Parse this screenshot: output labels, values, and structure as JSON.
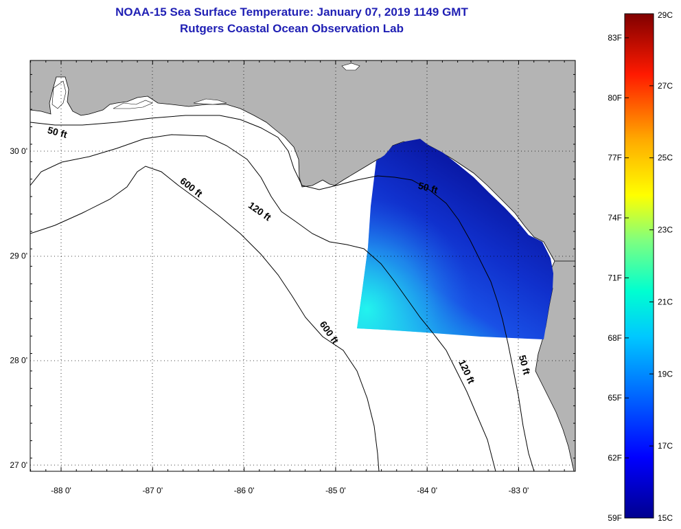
{
  "title": {
    "line1": "NOAA-15 Sea Surface Temperature:  January 07, 2019 1149 GMT",
    "line2": "Rutgers Coastal Ocean Observation Lab"
  },
  "colors": {
    "land": "#b4b4b4",
    "ocean": "#ffffff",
    "title": "#1f1fb4"
  },
  "map": {
    "lon_range": [
      -88.33,
      -82.4
    ],
    "lat_range": [
      27.0,
      30.9
    ],
    "lon_ticks": [
      {
        "value": -88,
        "label": "-88 0'"
      },
      {
        "value": -87,
        "label": "-87 0'"
      },
      {
        "value": -86,
        "label": "-86 0'"
      },
      {
        "value": -85,
        "label": "-85 0'"
      },
      {
        "value": -84,
        "label": "-84 0'"
      },
      {
        "value": -83,
        "label": "-83 0'"
      }
    ],
    "lat_ticks": [
      {
        "value": 27,
        "label": "27 0'"
      },
      {
        "value": 28,
        "label": "28 0'"
      },
      {
        "value": 29,
        "label": "29 0'"
      },
      {
        "value": 30,
        "label": "30 0'"
      }
    ],
    "contour_labels": [
      {
        "text": "50 ft",
        "lon": -88.05,
        "lat": 30.15,
        "angle": 15
      },
      {
        "text": "600 ft",
        "lon": -86.6,
        "lat": 29.63,
        "angle": 38
      },
      {
        "text": "120 ft",
        "lon": -85.85,
        "lat": 29.4,
        "angle": 35
      },
      {
        "text": "50 ft",
        "lon": -84.0,
        "lat": 29.62,
        "angle": 15
      },
      {
        "text": "600 ft",
        "lon": -85.1,
        "lat": 28.25,
        "angle": 55
      },
      {
        "text": "120 ft",
        "lon": -83.6,
        "lat": 27.88,
        "angle": 65
      },
      {
        "text": "50 ft",
        "lon": -82.97,
        "lat": 27.95,
        "angle": 75
      }
    ]
  },
  "colorbar": {
    "celsius": [
      "29C",
      "27C",
      "25C",
      "23C",
      "21C",
      "19C",
      "17C",
      "15C"
    ],
    "fahrenheit": [
      "83F",
      "80F",
      "77F",
      "74F",
      "71F",
      "68F",
      "65F",
      "62F",
      "59F"
    ]
  }
}
